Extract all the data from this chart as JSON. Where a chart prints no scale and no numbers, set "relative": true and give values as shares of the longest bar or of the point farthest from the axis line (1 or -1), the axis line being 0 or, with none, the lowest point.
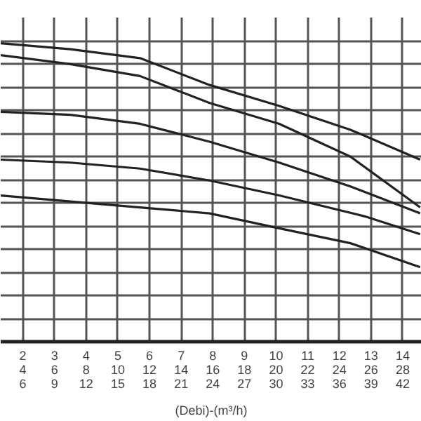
{
  "chart_data": {
    "type": "line",
    "relative": true,
    "xlabel": "(Debi)-(m³/h)",
    "xlim": [
      1.3,
      14.6
    ],
    "xticks": [
      2,
      3,
      4,
      5,
      6,
      7,
      8,
      9,
      10,
      11,
      12,
      13,
      14
    ],
    "x2lim": [
      2.6,
      29.2
    ],
    "x2ticks": [
      4,
      6,
      8,
      10,
      12,
      14,
      16,
      18,
      20,
      22,
      24,
      26,
      28
    ],
    "annotations": [
      "6",
      "9",
      "12",
      "15",
      "18",
      "21",
      "24",
      "27",
      "30",
      "33",
      "36",
      "39",
      "42"
    ],
    "grid": true,
    "marker": "none",
    "line_style": "solid",
    "series": [
      {
        "color": "#222222",
        "x": [
          1.3,
          3.5,
          5.7,
          7.9,
          10.1,
          12.35,
          14.55
        ],
        "values": [
          1.0,
          0.98,
          0.95,
          0.86,
          0.79,
          0.71,
          0.61
        ]
      },
      {
        "color": "#222222",
        "x": [
          1.3,
          3.5,
          5.7,
          7.9,
          10.1,
          12.35,
          14.55
        ],
        "values": [
          0.96,
          0.93,
          0.89,
          0.8,
          0.73,
          0.62,
          0.45
        ]
      },
      {
        "color": "#222222",
        "x": [
          1.3,
          3.5,
          5.7,
          7.9,
          10.1,
          12.35,
          14.55
        ],
        "values": [
          0.77,
          0.76,
          0.73,
          0.67,
          0.6,
          0.52,
          0.43
        ]
      },
      {
        "color": "#222222",
        "x": [
          1.3,
          3.5,
          5.7,
          7.9,
          10.1,
          12.8,
          14.55
        ],
        "values": [
          0.61,
          0.6,
          0.58,
          0.54,
          0.49,
          0.42,
          0.36
        ]
      },
      {
        "color": "#222222",
        "x": [
          1.3,
          3.5,
          5.7,
          7.9,
          10.1,
          12.35,
          14.55
        ],
        "values": [
          0.49,
          0.47,
          0.45,
          0.43,
          0.38,
          0.33,
          0.25
        ]
      }
    ]
  }
}
